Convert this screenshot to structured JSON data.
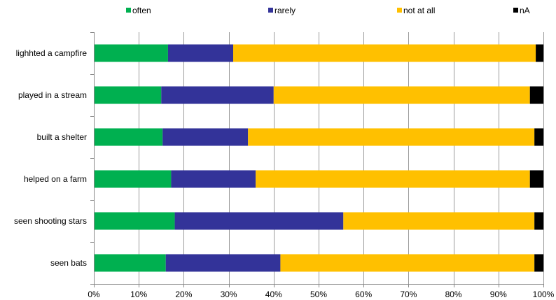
{
  "chart_data": {
    "type": "bar",
    "orientation": "horizontal",
    "stacked": true,
    "categories": [
      "lighhted a campfire",
      "played in a stream",
      "built a shelter",
      "helped on a farm",
      "seen shooting stars",
      "seen bats"
    ],
    "series": [
      {
        "name": "often",
        "color": "#00b050",
        "values": [
          16.5,
          15.0,
          15.3,
          17.2,
          18.0,
          16.0
        ]
      },
      {
        "name": "rarely",
        "color": "#333399",
        "values": [
          14.5,
          25.0,
          19.0,
          18.8,
          37.5,
          25.5
        ]
      },
      {
        "name": "not at all",
        "color": "#ffc000",
        "values": [
          67.3,
          57.0,
          63.7,
          61.0,
          42.5,
          56.5
        ]
      },
      {
        "name": "nA",
        "color": "#000000",
        "values": [
          1.7,
          3.0,
          2.0,
          3.0,
          2.0,
          2.0
        ]
      }
    ],
    "xlim": [
      0,
      100
    ],
    "x_ticks": [
      "0%",
      "10%",
      "20%",
      "30%",
      "40%",
      "50%",
      "60%",
      "70%",
      "80%",
      "90%",
      "100%"
    ],
    "grid": true,
    "legend_position": "top"
  }
}
